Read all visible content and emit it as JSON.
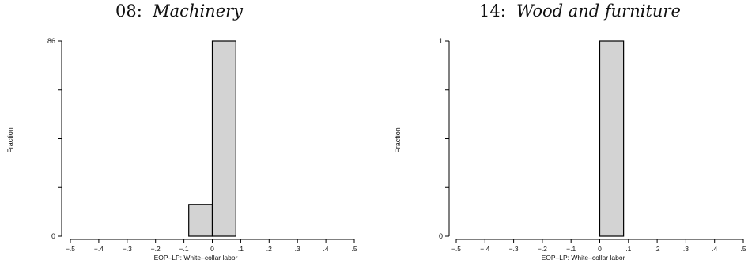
{
  "chart_data": [
    {
      "type": "bar",
      "title_number": "08:",
      "title_name": "Machinery",
      "xlabel": "EOP–LP: White–collar labor",
      "ylabel": "Fraction",
      "xlim": [
        -0.5,
        0.5
      ],
      "ylim": [
        0,
        0.86
      ],
      "xticks": [
        -0.5,
        -0.4,
        -0.3,
        -0.2,
        -0.1,
        0,
        0.1,
        0.2,
        0.3,
        0.4,
        0.5
      ],
      "xtick_labels": [
        "−.5",
        "−.4",
        "−.3",
        "−.2",
        "−.1",
        "0",
        ".1",
        ".2",
        ".3",
        ".4",
        ".5"
      ],
      "ytick_labels": [
        ".86",
        "0"
      ],
      "yticks_minor": [
        0.215,
        0.43,
        0.645
      ],
      "bar_fill": "#d3d3d3",
      "bars": [
        {
          "x0": -0.083,
          "x1": 0.0,
          "value": 0.14
        },
        {
          "x0": 0.0,
          "x1": 0.083,
          "value": 0.86
        }
      ]
    },
    {
      "type": "bar",
      "title_number": "14:",
      "title_name": "Wood and furniture",
      "xlabel": "EOP–LP: White–collar labor",
      "ylabel": "Fraction",
      "xlim": [
        -0.5,
        0.5
      ],
      "ylim": [
        0,
        1
      ],
      "xticks": [
        -0.5,
        -0.4,
        -0.3,
        -0.2,
        -0.1,
        0,
        0.1,
        0.2,
        0.3,
        0.4,
        0.5
      ],
      "xtick_labels": [
        "−.5",
        "−.4",
        "−.3",
        "−.2",
        "−.1",
        "0",
        ".1",
        ".2",
        ".3",
        ".4",
        ".5"
      ],
      "ytick_labels": [
        "1",
        "0"
      ],
      "yticks_minor": [
        0.25,
        0.5,
        0.75
      ],
      "bar_fill": "#d3d3d3",
      "bars": [
        {
          "x0": 0.0,
          "x1": 0.083,
          "value": 1.0
        }
      ]
    }
  ]
}
